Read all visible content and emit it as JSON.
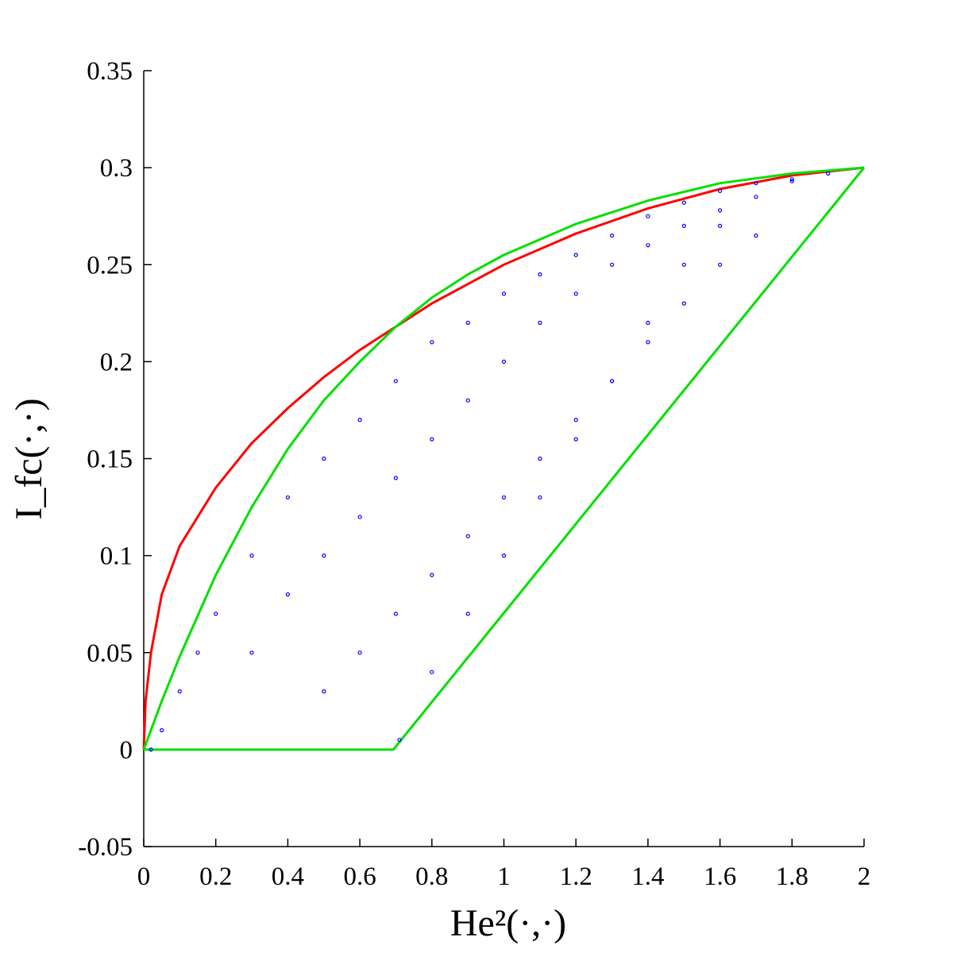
{
  "chart_data": {
    "type": "scatter",
    "title": "",
    "xlabel": "He²(·,·)",
    "ylabel": "I_fc(·,·)",
    "xlim": [
      0,
      2
    ],
    "ylim": [
      -0.05,
      0.35
    ],
    "x_ticks": [
      "0",
      "0.2",
      "0.4",
      "0.6",
      "0.8",
      "1",
      "1.2",
      "1.4",
      "1.6",
      "1.8",
      "2"
    ],
    "y_ticks": [
      "-0.05",
      "0",
      "0.05",
      "0.1",
      "0.15",
      "0.2",
      "0.25",
      "0.3",
      "0.35"
    ],
    "grid": false,
    "legend": "none",
    "series": [
      {
        "kind": "line",
        "color": "#ff0000",
        "points": [
          [
            0,
            0
          ],
          [
            0.005,
            0.025
          ],
          [
            0.02,
            0.05
          ],
          [
            0.05,
            0.08
          ],
          [
            0.1,
            0.105
          ],
          [
            0.2,
            0.135
          ],
          [
            0.3,
            0.158
          ],
          [
            0.4,
            0.176
          ],
          [
            0.5,
            0.192
          ],
          [
            0.6,
            0.206
          ],
          [
            0.7,
            0.218
          ],
          [
            0.8,
            0.23
          ],
          [
            0.9,
            0.24
          ],
          [
            1.0,
            0.25
          ],
          [
            1.2,
            0.266
          ],
          [
            1.4,
            0.279
          ],
          [
            1.6,
            0.289
          ],
          [
            1.8,
            0.296
          ],
          [
            2.0,
            0.3
          ]
        ]
      },
      {
        "kind": "line",
        "color": "#00e000",
        "points": [
          [
            0,
            0
          ],
          [
            0.05,
            0.025
          ],
          [
            0.1,
            0.048
          ],
          [
            0.2,
            0.09
          ],
          [
            0.3,
            0.125
          ],
          [
            0.4,
            0.155
          ],
          [
            0.5,
            0.18
          ],
          [
            0.6,
            0.2
          ],
          [
            0.7,
            0.218
          ],
          [
            0.8,
            0.233
          ],
          [
            0.9,
            0.245
          ],
          [
            1.0,
            0.255
          ],
          [
            1.2,
            0.271
          ],
          [
            1.4,
            0.283
          ],
          [
            1.6,
            0.292
          ],
          [
            1.8,
            0.297
          ],
          [
            2.0,
            0.3
          ]
        ]
      },
      {
        "kind": "line",
        "color": "#00e000",
        "points": [
          [
            0,
            0
          ],
          [
            0.693,
            0
          ],
          [
            2.0,
            0.3
          ]
        ]
      },
      {
        "kind": "scatter",
        "color": "#0000ff",
        "description_source": "region between green curves",
        "points": [
          [
            0.02,
            0.0
          ],
          [
            0.05,
            0.01
          ],
          [
            0.1,
            0.03
          ],
          [
            0.15,
            0.05
          ],
          [
            0.2,
            0.07
          ],
          [
            0.3,
            0.1
          ],
          [
            0.4,
            0.13
          ],
          [
            0.5,
            0.15
          ],
          [
            0.6,
            0.17
          ],
          [
            0.7,
            0.19
          ],
          [
            0.8,
            0.21
          ],
          [
            0.9,
            0.22
          ],
          [
            1.0,
            0.235
          ],
          [
            1.1,
            0.245
          ],
          [
            1.2,
            0.255
          ],
          [
            1.3,
            0.265
          ],
          [
            1.4,
            0.275
          ],
          [
            1.5,
            0.282
          ],
          [
            1.6,
            0.288
          ],
          [
            1.7,
            0.292
          ],
          [
            1.8,
            0.294
          ],
          [
            1.9,
            0.297
          ],
          [
            0.3,
            0.05
          ],
          [
            0.4,
            0.08
          ],
          [
            0.5,
            0.1
          ],
          [
            0.6,
            0.12
          ],
          [
            0.7,
            0.14
          ],
          [
            0.8,
            0.16
          ],
          [
            0.9,
            0.18
          ],
          [
            1.0,
            0.2
          ],
          [
            1.1,
            0.22
          ],
          [
            1.2,
            0.235
          ],
          [
            1.3,
            0.25
          ],
          [
            1.4,
            0.26
          ],
          [
            1.5,
            0.27
          ],
          [
            1.6,
            0.278
          ],
          [
            0.5,
            0.03
          ],
          [
            0.6,
            0.05
          ],
          [
            0.7,
            0.07
          ],
          [
            0.8,
            0.09
          ],
          [
            0.9,
            0.11
          ],
          [
            1.0,
            0.13
          ],
          [
            1.1,
            0.15
          ],
          [
            1.2,
            0.17
          ],
          [
            1.3,
            0.19
          ],
          [
            1.4,
            0.21
          ],
          [
            1.5,
            0.23
          ],
          [
            1.6,
            0.25
          ],
          [
            1.7,
            0.265
          ],
          [
            0.71,
            0.005
          ],
          [
            0.8,
            0.04
          ],
          [
            0.9,
            0.07
          ],
          [
            1.0,
            0.1
          ],
          [
            1.1,
            0.13
          ],
          [
            1.2,
            0.16
          ],
          [
            1.3,
            0.19
          ],
          [
            1.4,
            0.22
          ],
          [
            1.5,
            0.25
          ],
          [
            1.6,
            0.27
          ],
          [
            1.7,
            0.285
          ],
          [
            1.8,
            0.293
          ]
        ]
      }
    ]
  }
}
